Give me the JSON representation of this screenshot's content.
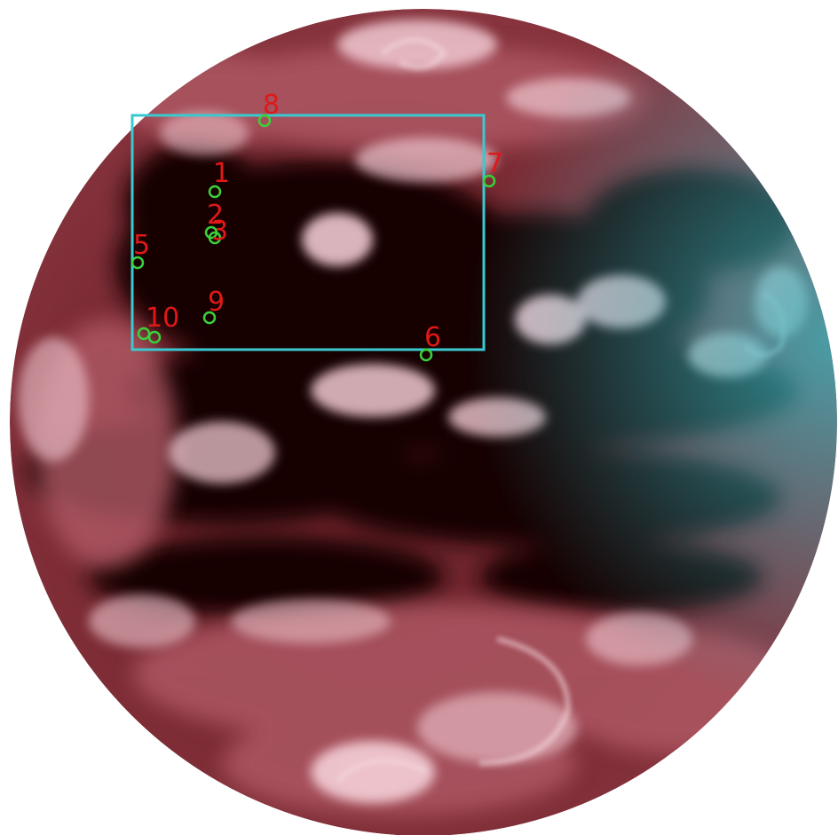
{
  "colors": {
    "background": "#ffffff",
    "earth_dark": "#140405",
    "earth_mid": "#7a2a33",
    "earth_light": "#c0707a",
    "cloud": "#f0c8d0",
    "cyan_tint": "#3ab8c0",
    "box": "#39c9d0",
    "marker_circle": "#39d23a",
    "marker_label": "#e01818"
  },
  "markers": [
    {
      "id": "1",
      "label": "1"
    },
    {
      "id": "2",
      "label": "2"
    },
    {
      "id": "3",
      "label": "3"
    },
    {
      "id": "5",
      "label": "5"
    },
    {
      "id": "6",
      "label": "6"
    },
    {
      "id": "7",
      "label": "7"
    },
    {
      "id": "8",
      "label": "8"
    },
    {
      "id": "9",
      "label": "9"
    },
    {
      "id": "10",
      "label": "10"
    }
  ]
}
